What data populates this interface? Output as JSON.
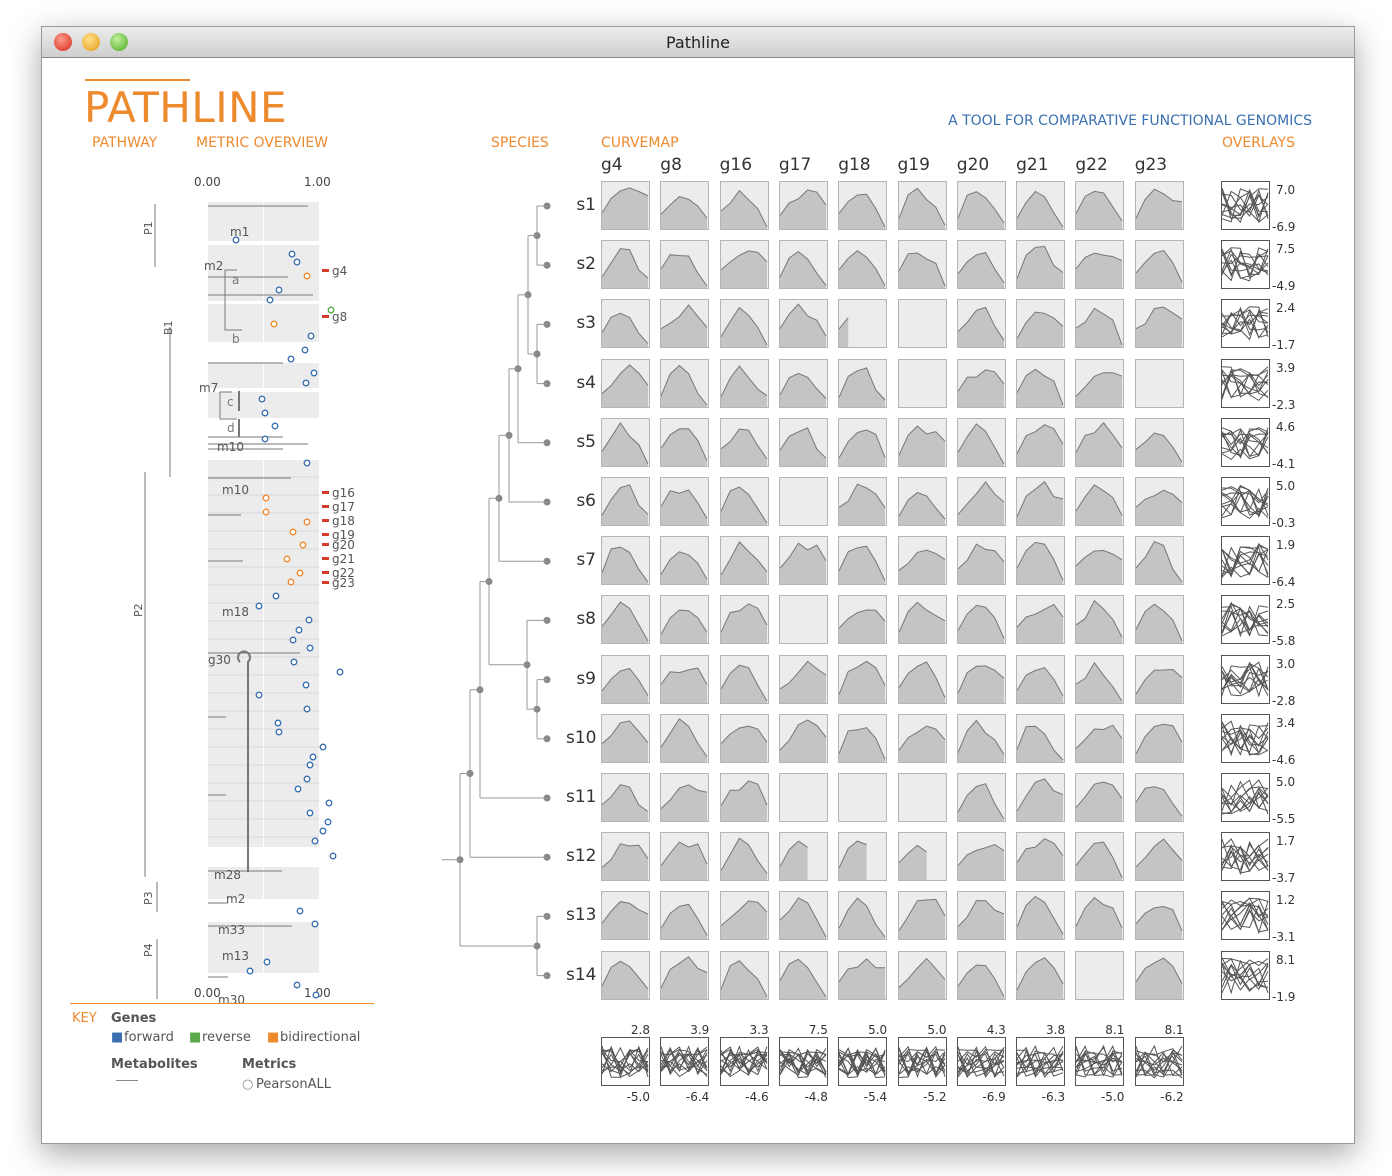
{
  "window": {
    "title": "Pathline"
  },
  "app": {
    "logo": "PATHLINE",
    "tagline": "A TOOL FOR COMPARATIVE FUNCTIONAL GENOMICS"
  },
  "sections": {
    "pathway": "PATHWAY",
    "metric_overview": "METRIC OVERVIEW",
    "species": "SPECIES",
    "curvemap": "CURVEMAP",
    "overlays": "OVERLAYS"
  },
  "metric_axis": {
    "min_label": "0.00",
    "max_label": "1.00"
  },
  "pathways": [
    {
      "label": "P1"
    },
    {
      "label": "B1"
    },
    {
      "label": "P2"
    },
    {
      "label": "P3"
    },
    {
      "label": "P4"
    }
  ],
  "metabolite_labels": [
    "m1",
    "m2",
    "m7",
    "m10",
    "m10",
    "m18",
    "m28",
    "m2",
    "m33",
    "m13",
    "m30"
  ],
  "sub_labels": [
    "a",
    "b",
    "c",
    "d"
  ],
  "side_genes": [
    "g4",
    "g8",
    "g16",
    "g17",
    "g18",
    "g19",
    "g20",
    "g21",
    "g22",
    "g23"
  ],
  "loop_gene": "g30",
  "genes": [
    "g4",
    "g8",
    "g16",
    "g17",
    "g18",
    "g19",
    "g20",
    "g21",
    "g22",
    "g23"
  ],
  "species": [
    "s1",
    "s2",
    "s3",
    "s4",
    "s5",
    "s6",
    "s7",
    "s8",
    "s9",
    "s10",
    "s11",
    "s12",
    "s13",
    "s14"
  ],
  "species_overlays": [
    {
      "max": "7.0",
      "min": "-6.9"
    },
    {
      "max": "7.5",
      "min": "-4.9"
    },
    {
      "max": "2.4",
      "min": "-1.7"
    },
    {
      "max": "3.9",
      "min": "-2.3"
    },
    {
      "max": "4.6",
      "min": "-4.1"
    },
    {
      "max": "5.0",
      "min": "-0.3"
    },
    {
      "max": "1.9",
      "min": "-6.4"
    },
    {
      "max": "2.5",
      "min": "-5.8"
    },
    {
      "max": "3.0",
      "min": "-2.8"
    },
    {
      "max": "3.4",
      "min": "-4.6"
    },
    {
      "max": "5.0",
      "min": "-5.5"
    },
    {
      "max": "1.7",
      "min": "-3.7"
    },
    {
      "max": "1.2",
      "min": "-3.1"
    },
    {
      "max": "8.1",
      "min": "-1.9"
    }
  ],
  "gene_overlays": [
    {
      "max": "2.8",
      "min": "-5.0"
    },
    {
      "max": "3.9",
      "min": "-6.4"
    },
    {
      "max": "3.3",
      "min": "-4.6"
    },
    {
      "max": "7.5",
      "min": "-4.8"
    },
    {
      "max": "5.0",
      "min": "-5.4"
    },
    {
      "max": "5.0",
      "min": "-5.2"
    },
    {
      "max": "4.3",
      "min": "-6.9"
    },
    {
      "max": "3.8",
      "min": "-6.3"
    },
    {
      "max": "8.1",
      "min": "-5.0"
    },
    {
      "max": "8.1",
      "min": "-6.2"
    }
  ],
  "key": {
    "title": "KEY",
    "genes_heading": "Genes",
    "forward": "forward",
    "reverse": "reverse",
    "bidirectional": "bidirectional",
    "metabolites_heading": "Metabolites",
    "metrics_heading": "Metrics",
    "metric_name": "PearsonALL"
  },
  "colors": {
    "accent": "#ee8a2e",
    "forward": "#3a6fb0",
    "reverse": "#5aa84a",
    "bidirectional": "#ee8a2e",
    "curve_fill": "#c4c4c4",
    "cell_bg": "#ececec",
    "highlight": "#d63a2a"
  }
}
